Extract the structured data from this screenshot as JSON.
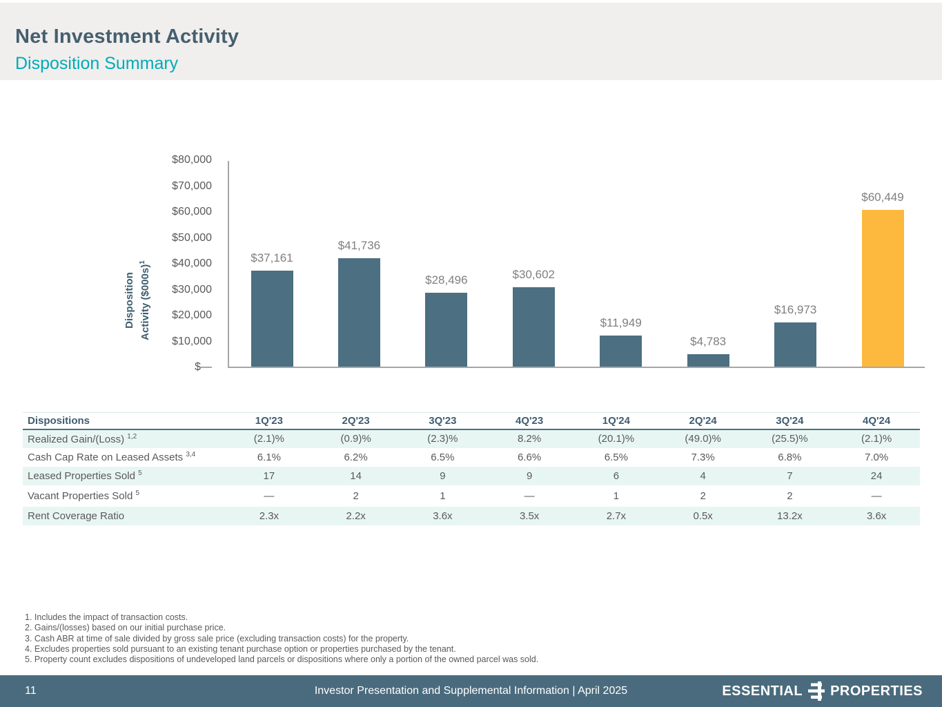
{
  "header": {
    "title": "Net Investment Activity",
    "subtitle": "Disposition Summary"
  },
  "chart_data": {
    "type": "bar",
    "categories": [
      "1Q'23",
      "2Q'23",
      "3Q'23",
      "4Q'23",
      "1Q'24",
      "2Q'24",
      "3Q'24",
      "4Q'24"
    ],
    "values": [
      37161,
      41736,
      28496,
      30602,
      11949,
      4783,
      16973,
      60449
    ],
    "value_labels": [
      "$37,161",
      "$41,736",
      "$28,496",
      "$30,602",
      "$11,949",
      "$4,783",
      "$16,973",
      "$60,449"
    ],
    "title": "",
    "xlabel": "",
    "ylabel_line1": "Disposition",
    "ylabel_line2": "Activity ($000s)",
    "ylabel_sup": "1",
    "y_ticks": [
      "$80,000",
      "$70,000",
      "$60,000",
      "$50,000",
      "$40,000",
      "$30,000",
      "$20,000",
      "$10,000",
      "$—"
    ],
    "ylim": [
      0,
      80000
    ],
    "grid": "off",
    "legend": "none",
    "bar_color": "#4c6f82",
    "highlight_color": "#fdb93d",
    "highlight_index": 7
  },
  "table": {
    "title": "Dispositions",
    "columns": [
      "1Q'23",
      "2Q'23",
      "3Q'23",
      "4Q'23",
      "1Q'24",
      "2Q'24",
      "3Q'24",
      "4Q'24"
    ],
    "rows": [
      {
        "label": "Realized Gain/(Loss)",
        "sup": "1,2",
        "values": [
          "(2.1)%",
          "(0.9)%",
          "(2.3)%",
          "8.2%",
          "(20.1)%",
          "(49.0)%",
          "(25.5)%",
          "(2.1)%"
        ]
      },
      {
        "label": "Cash Cap Rate on Leased Assets",
        "sup": "3,4",
        "values": [
          "6.1%",
          "6.2%",
          "6.5%",
          "6.6%",
          "6.5%",
          "7.3%",
          "6.8%",
          "7.0%"
        ]
      },
      {
        "label": "Leased Properties Sold",
        "sup": "5",
        "values": [
          "17",
          "14",
          "9",
          "9",
          "6",
          "4",
          "7",
          "24"
        ]
      },
      {
        "label": "Vacant Properties Sold",
        "sup": "5",
        "values": [
          "—",
          "2",
          "1",
          "—",
          "1",
          "2",
          "2",
          "—"
        ]
      },
      {
        "label": "Rent Coverage Ratio",
        "sup": "",
        "values": [
          "2.3x",
          "2.2x",
          "3.6x",
          "3.5x",
          "2.7x",
          "0.5x",
          "13.2x",
          "3.6x"
        ]
      }
    ]
  },
  "footnotes": [
    "1. Includes the impact of transaction costs.",
    "2. Gains/(losses) based on our initial purchase price.",
    "3. Cash ABR at time of sale divided by gross sale price (excluding transaction costs) for the property.",
    "4. Excludes properties sold pursuant to an existing tenant purchase option or properties purchased by the tenant.",
    "5. Property count excludes dispositions of undeveloped land parcels or dispositions where only a portion of the owned parcel was sold."
  ],
  "footer": {
    "page_number": "11",
    "center_text": "Investor Presentation and Supplemental Information |  April 2025",
    "logo_left": "ESSENTIAL",
    "logo_right": "PROPERTIES"
  }
}
